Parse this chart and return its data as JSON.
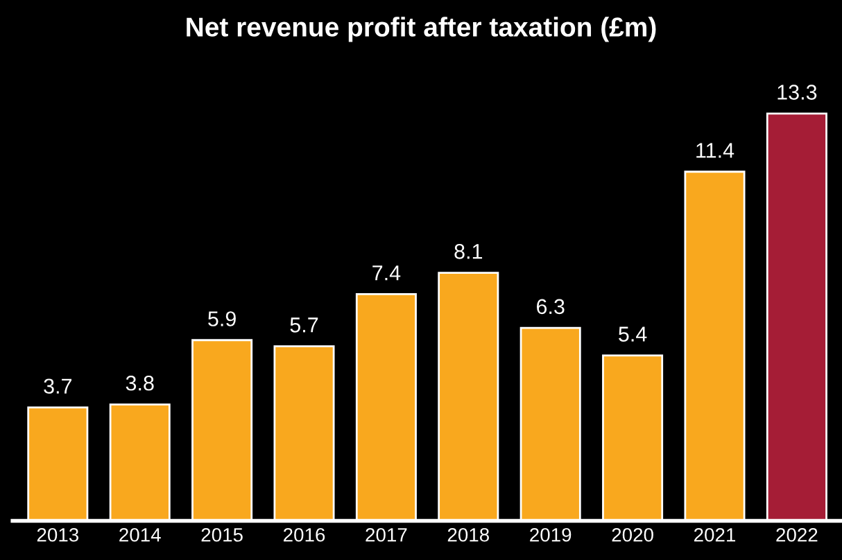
{
  "chart_data": {
    "type": "bar",
    "title": "Net revenue profit after taxation (£m)",
    "categories": [
      "2013",
      "2014",
      "2015",
      "2016",
      "2017",
      "2018",
      "2019",
      "2020",
      "2021",
      "2022"
    ],
    "values": [
      3.7,
      3.8,
      5.9,
      5.7,
      7.4,
      8.1,
      6.3,
      5.4,
      11.4,
      13.3
    ],
    "colors": [
      "#f9a81e",
      "#f9a81e",
      "#f9a81e",
      "#f9a81e",
      "#f9a81e",
      "#f9a81e",
      "#f9a81e",
      "#f9a81e",
      "#f9a81e",
      "#a51d36"
    ],
    "data_labels": true,
    "grid": false,
    "legend": false
  }
}
